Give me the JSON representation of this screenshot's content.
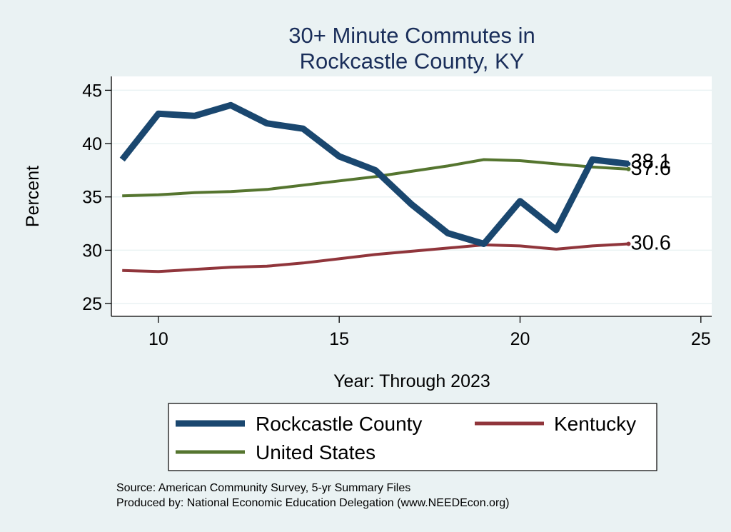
{
  "chart_data": {
    "type": "line",
    "title_lines": [
      "30+ Minute Commutes in",
      "Rockcastle County, KY"
    ],
    "xlabel": "Year: Through 2023",
    "ylabel": "Percent",
    "xlim": [
      8.7,
      25.3
    ],
    "ylim": [
      23.8,
      46.3
    ],
    "x_ticks": [
      10,
      15,
      20,
      25
    ],
    "y_ticks": [
      25,
      30,
      35,
      40,
      45
    ],
    "grid": true,
    "legend_position": "bottom",
    "series": [
      {
        "name": "Rockcastle County",
        "color": "#1a476f",
        "x": [
          9,
          10,
          11,
          12,
          13,
          14,
          15,
          16,
          17,
          18,
          19,
          20,
          21,
          22,
          23
        ],
        "y": [
          38.5,
          42.8,
          42.6,
          43.6,
          41.9,
          41.4,
          38.8,
          37.5,
          34.3,
          31.6,
          30.6,
          34.6,
          31.9,
          38.5,
          38.1
        ],
        "end_label": "38.1"
      },
      {
        "name": "Kentucky",
        "color": "#90353b",
        "x": [
          9,
          10,
          11,
          12,
          13,
          14,
          15,
          16,
          17,
          18,
          19,
          20,
          21,
          22,
          23
        ],
        "y": [
          28.1,
          28.0,
          28.2,
          28.4,
          28.5,
          28.8,
          29.2,
          29.6,
          29.9,
          30.2,
          30.5,
          30.4,
          30.1,
          30.4,
          30.6
        ],
        "end_label": "30.6"
      },
      {
        "name": "United States",
        "color": "#55752f",
        "x": [
          9,
          10,
          11,
          12,
          13,
          14,
          15,
          16,
          17,
          18,
          19,
          20,
          21,
          22,
          23
        ],
        "y": [
          35.1,
          35.2,
          35.4,
          35.5,
          35.7,
          36.1,
          36.5,
          36.9,
          37.4,
          37.9,
          38.5,
          38.4,
          38.1,
          37.8,
          37.6
        ],
        "end_label": "37.6"
      }
    ]
  },
  "footer": {
    "source": "Source: American Community Survey, 5-yr Summary Files",
    "produced": "Produced by: National Economic Education Delegation (www.NEEDEcon.org)"
  }
}
